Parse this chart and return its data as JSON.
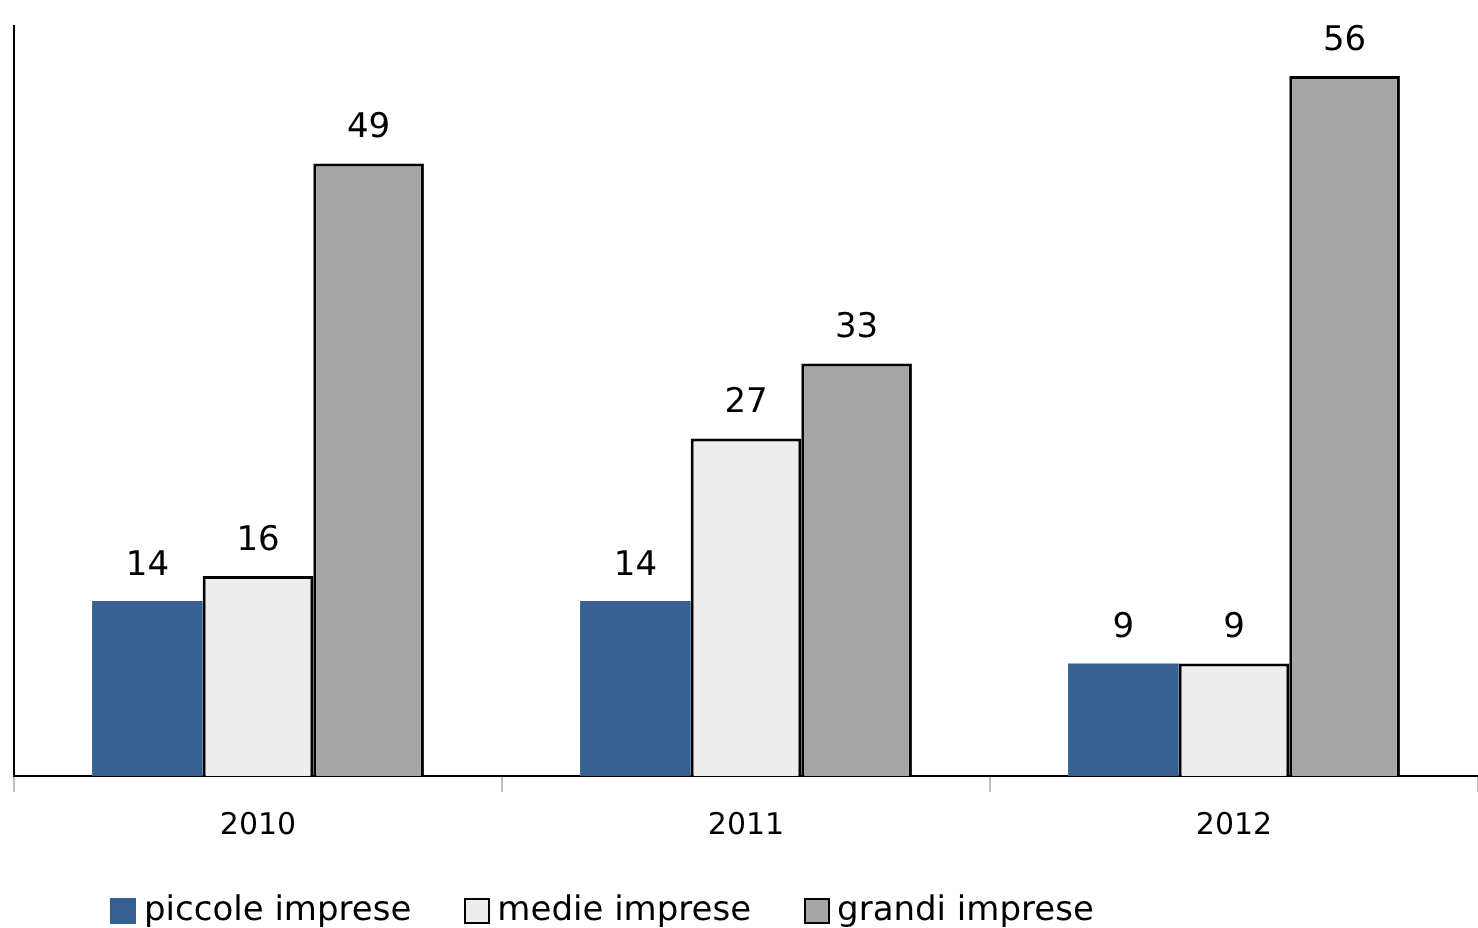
{
  "chart_data": {
    "type": "bar",
    "categories": [
      "2010",
      "2011",
      "2012"
    ],
    "series": [
      {
        "name": "piccole imprese",
        "color": "#376092",
        "values": [
          14,
          14,
          9
        ]
      },
      {
        "name": "medie imprese",
        "color": "#ededed",
        "values": [
          16,
          27,
          9
        ]
      },
      {
        "name": "grandi imprese",
        "color": "#a6a6a6",
        "values": [
          49,
          33,
          56
        ]
      }
    ],
    "data_labels": true,
    "grid": false,
    "legend": "bottom"
  }
}
